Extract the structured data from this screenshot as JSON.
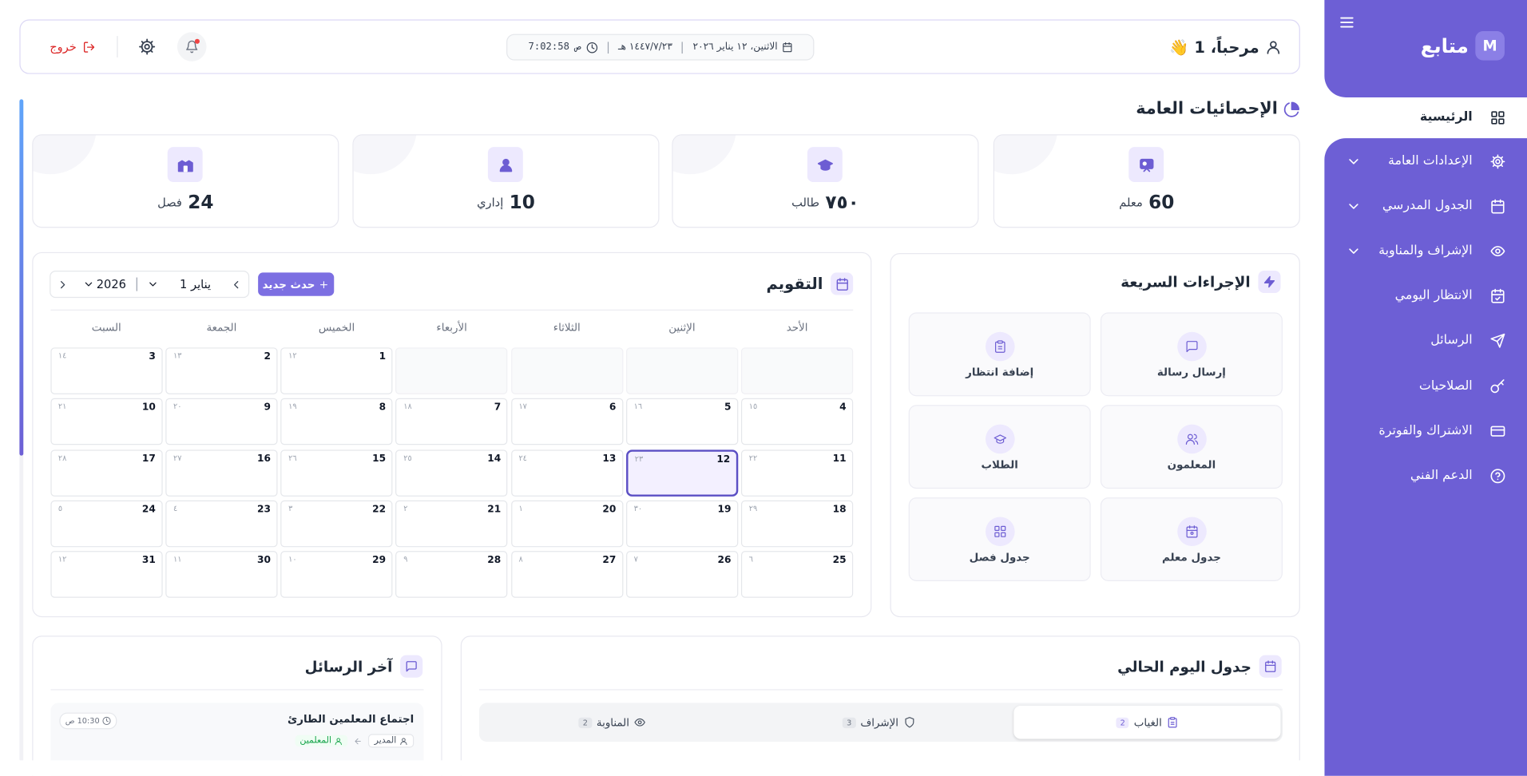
{
  "sidebar": {
    "brand": "متابع",
    "logo": "M",
    "menu": [
      {
        "label": "الرئيسية"
      },
      {
        "label": "الإعدادات العامة"
      },
      {
        "label": "الجدول المدرسي"
      },
      {
        "label": "الإشراف والمناوبة"
      },
      {
        "label": "الانتظار اليومي"
      },
      {
        "label": "الرسائل"
      },
      {
        "label": "الصلاحيات"
      },
      {
        "label": "الاشتراك والفوترة"
      },
      {
        "label": "الدعم الفني"
      }
    ]
  },
  "header": {
    "greeting": "مرحباً، 1 👋",
    "date": "الاثنين، ١٢ يناير ٢٠٢٦",
    "hijri": "١٤٤٧/٧/٢٣ هـ",
    "time": "7:02:58 ص",
    "logout": "خروج"
  },
  "stats": {
    "title": "الإحصائيات العامة",
    "cards": [
      {
        "value": "60",
        "label": "معلم"
      },
      {
        "value": "٧٥٠",
        "label": "طالب"
      },
      {
        "value": "10",
        "label": "إداري"
      },
      {
        "value": "24",
        "label": "فصل"
      }
    ]
  },
  "quick_actions": {
    "title": "الإجراءات السريعة",
    "items": [
      "إرسال رسالة",
      "إضافة انتظار",
      "المعلمون",
      "الطلاب",
      "جدول معلم",
      "جدول فصل"
    ]
  },
  "calendar": {
    "title": "التقويم",
    "new_event": "حدث جديد",
    "month": "يناير 1",
    "year": "2026",
    "weekdays": [
      "الأحد",
      "الإثنين",
      "الثلاثاء",
      "الأربعاء",
      "الخميس",
      "الجمعة",
      "السبت"
    ],
    "weeks": [
      [
        null,
        null,
        null,
        null,
        {
          "day": "1",
          "hijri": "١٢"
        },
        {
          "day": "2",
          "hijri": "١٣"
        },
        {
          "day": "3",
          "hijri": "١٤"
        }
      ],
      [
        {
          "day": "4",
          "hijri": "١٥"
        },
        {
          "day": "5",
          "hijri": "١٦"
        },
        {
          "day": "6",
          "hijri": "١٧"
        },
        {
          "day": "7",
          "hijri": "١٨"
        },
        {
          "day": "8",
          "hijri": "١٩"
        },
        {
          "day": "9",
          "hijri": "٢٠"
        },
        {
          "day": "10",
          "hijri": "٢١"
        }
      ],
      [
        {
          "day": "11",
          "hijri": "٢٢"
        },
        {
          "day": "12",
          "hijri": "٢٣",
          "selected": true
        },
        {
          "day": "13",
          "hijri": "٢٤"
        },
        {
          "day": "14",
          "hijri": "٢٥"
        },
        {
          "day": "15",
          "hijri": "٢٦"
        },
        {
          "day": "16",
          "hijri": "٢٧"
        },
        {
          "day": "17",
          "hijri": "٢٨"
        }
      ],
      [
        {
          "day": "18",
          "hijri": "٢٩"
        },
        {
          "day": "19",
          "hijri": "٣٠"
        },
        {
          "day": "20",
          "hijri": "١"
        },
        {
          "day": "21",
          "hijri": "٢"
        },
        {
          "day": "22",
          "hijri": "٣"
        },
        {
          "day": "23",
          "hijri": "٤"
        },
        {
          "day": "24",
          "hijri": "٥"
        }
      ],
      [
        {
          "day": "25",
          "hijri": "٦"
        },
        {
          "day": "26",
          "hijri": "٧"
        },
        {
          "day": "27",
          "hijri": "٨"
        },
        {
          "day": "28",
          "hijri": "٩"
        },
        {
          "day": "29",
          "hijri": "١٠"
        },
        {
          "day": "30",
          "hijri": "١١"
        },
        {
          "day": "31",
          "hijri": "١٢"
        }
      ]
    ]
  },
  "messages": {
    "title": "آخر الرسائل",
    "items": [
      {
        "subject": "اجتماع المعلمين الطارئ",
        "time": "10:30 ص",
        "from": "المدير",
        "to": "المعلمين"
      }
    ]
  },
  "schedule": {
    "title": "جدول اليوم الحالي",
    "tabs": [
      {
        "label": "الغياب",
        "count": "2"
      },
      {
        "label": "الإشراف",
        "count": "3"
      },
      {
        "label": "المناوبة",
        "count": "2"
      }
    ]
  }
}
